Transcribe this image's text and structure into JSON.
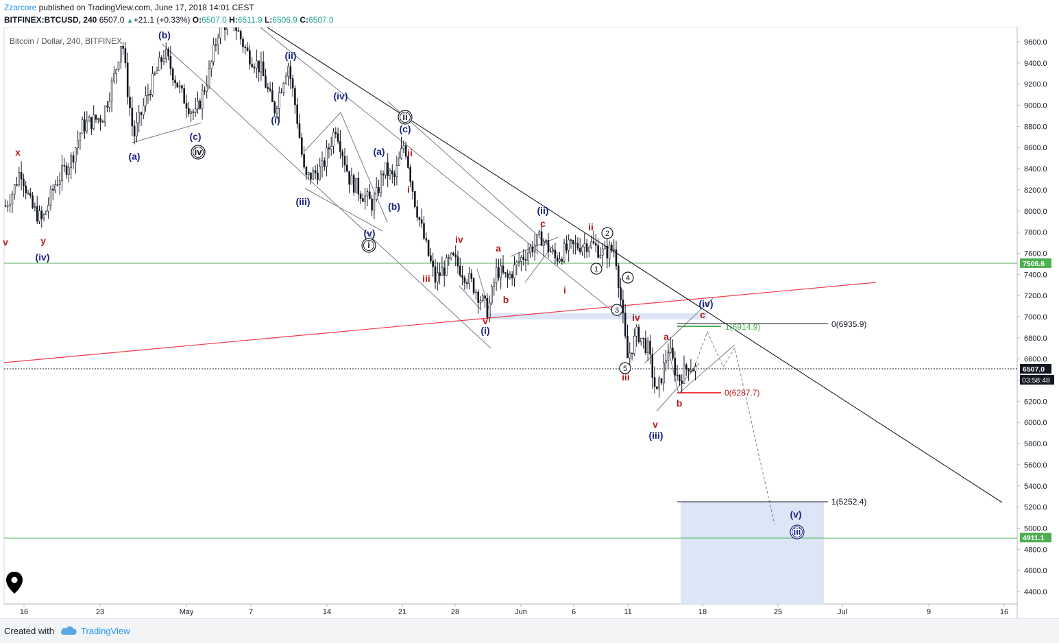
{
  "header": {
    "author": "Zzarcore",
    "published_text": " published on TradingView.com, June 17, 2018 14:01 CEST",
    "symbol": "BITFINEX:BTCUSD, 240",
    "last": "6507.0",
    "change": "+21.1 (+0.33%)",
    "o_label": "O:",
    "o": "6507.0",
    "h_label": "H:",
    "h": "6511.9",
    "l_label": "L:",
    "l": "6506.9",
    "c_label": "C:",
    "c": "6507.0"
  },
  "chart_title": "Bitcoin / Dollar, 240, BITFINEX",
  "footer": {
    "created": "Created with",
    "brand": "TradingView"
  },
  "colors": {
    "up": "#26a69a",
    "blue": "#1a237e",
    "red": "#b71c1c",
    "green_line": "#4caf50",
    "red_line": "#f23645",
    "target_box": "#dce6f7"
  },
  "chart_data": {
    "type": "candlestick",
    "title": "Bitcoin / Dollar, 240, BITFINEX",
    "x_ticks": [
      "16",
      "23",
      "May",
      "7",
      "14",
      "21",
      "28",
      "Jun",
      "6",
      "11",
      "18",
      "25",
      "Jul",
      "9",
      "16"
    ],
    "y_ticks": [
      "9600.0",
      "9400.0",
      "9200.0",
      "9000.0",
      "8800.0",
      "8600.0",
      "8400.0",
      "8200.0",
      "8000.0",
      "7800.0",
      "7600.0",
      "7400.0",
      "7200.0",
      "7000.0",
      "6800.0",
      "6600.0",
      "6400.0",
      "6200.0",
      "6000.0",
      "5800.0",
      "5600.0",
      "5400.0",
      "5200.0",
      "5000.0",
      "4800.0",
      "4600.0",
      "4400.0"
    ],
    "ylim": [
      4300,
      9800
    ],
    "price_tags": [
      {
        "value": 7506.6,
        "label": "7506.6",
        "color": "#4caf50"
      },
      {
        "value": 6507.0,
        "label": "6507.0",
        "color": "#131722"
      },
      {
        "value": 4911.1,
        "label": "4911.1",
        "color": "#4caf50"
      }
    ],
    "countdown": "03:58:48",
    "horizontal_levels": [
      {
        "value": 7506.6,
        "style": "green"
      },
      {
        "value": 4911.1,
        "style": "green"
      },
      {
        "value": 6507.0,
        "style": "dotted"
      }
    ],
    "fib_labels": [
      {
        "text": "0(6935.9)",
        "color": "#131722"
      },
      {
        "text": "1(6914.9)",
        "color": "#4caf50"
      },
      {
        "text": "0(6287.7)",
        "color": "#b71c1c"
      },
      {
        "text": "1(5252.4)",
        "color": "#131722"
      }
    ],
    "wave_labels_blue": [
      "(b)",
      "(c)",
      "(a)",
      "(iv)",
      "(ii)",
      "(i)",
      "(iii)",
      "(iv)",
      "(a)",
      "(b)",
      "(v)",
      "(c)",
      "(ii)",
      "(i)",
      "(iv)",
      "(iii)",
      "(v)"
    ],
    "wave_labels_red": [
      "x",
      "y",
      "v",
      "ii",
      "i",
      "iii",
      "iv",
      "a",
      "b",
      "v",
      "c",
      "i",
      "ii",
      "iv",
      "iii",
      "a",
      "b",
      "c",
      "v"
    ],
    "wave_labels_circled": [
      "iv",
      "i",
      "ii",
      "1",
      "2",
      "3",
      "4",
      "5",
      "iii"
    ]
  }
}
